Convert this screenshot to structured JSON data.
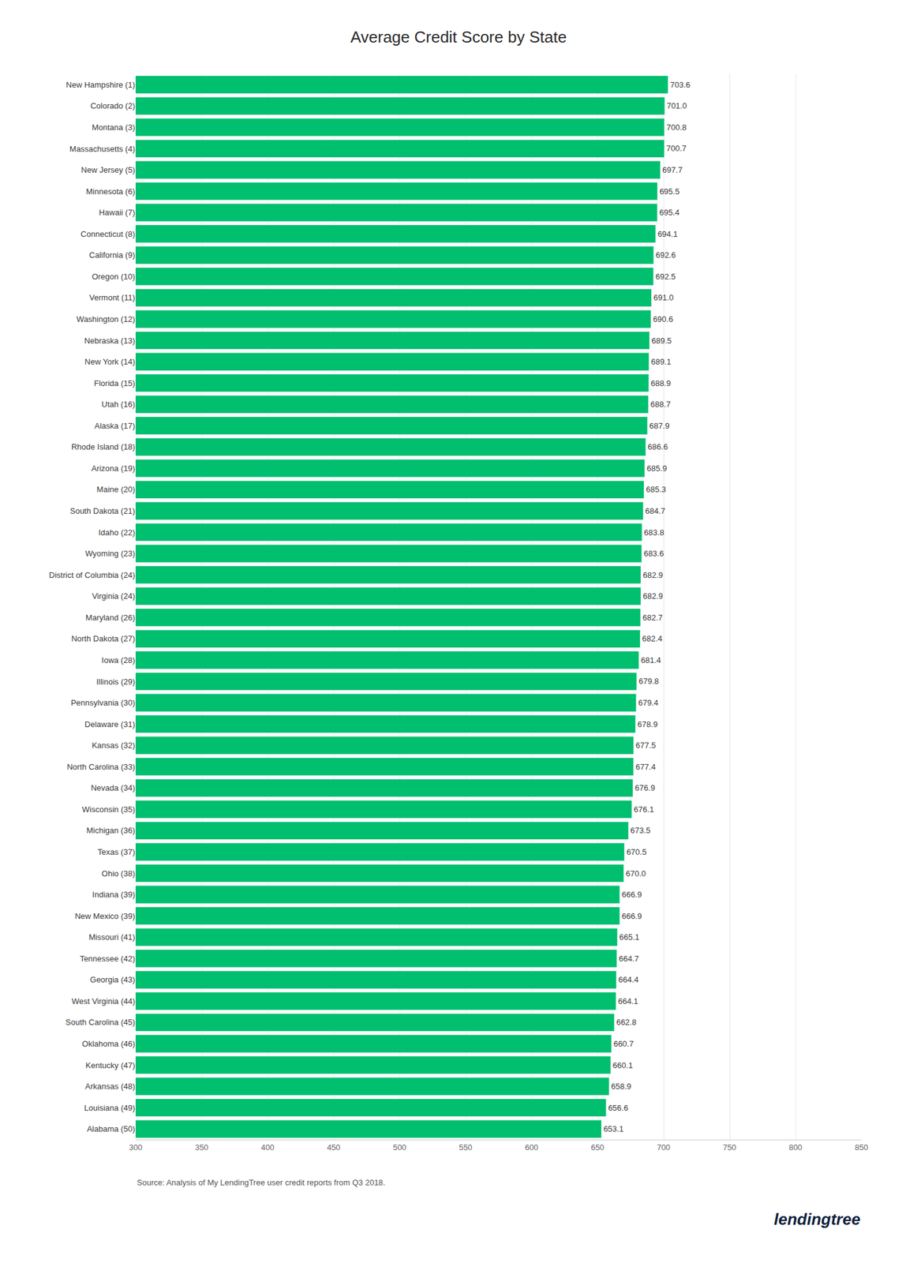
{
  "chart_data": {
    "type": "bar",
    "orientation": "horizontal",
    "title": "Average Credit Score by State",
    "categories": [
      "New Hampshire (1)",
      "Colorado (2)",
      "Montana (3)",
      "Massachusetts (4)",
      "New Jersey (5)",
      "Minnesota (6)",
      "Hawaii (7)",
      "Connecticut (8)",
      "California (9)",
      "Oregon (10)",
      "Vermont (11)",
      "Washington (12)",
      "Nebraska (13)",
      "New York (14)",
      "Florida (15)",
      "Utah (16)",
      "Alaska (17)",
      "Rhode Island (18)",
      "Arizona (19)",
      "Maine (20)",
      "South Dakota (21)",
      "Idaho (22)",
      "Wyoming (23)",
      "District of Columbia (24)",
      "Virginia (24)",
      "Maryland (26)",
      "North Dakota (27)",
      "Iowa (28)",
      "Illinois (29)",
      "Pennsylvania (30)",
      "Delaware (31)",
      "Kansas (32)",
      "North Carolina (33)",
      "Nevada (34)",
      "Wisconsin (35)",
      "Michigan (36)",
      "Texas (37)",
      "Ohio (38)",
      "Indiana (39)",
      "New Mexico (39)",
      "Missouri (41)",
      "Tennessee (42)",
      "Georgia (43)",
      "West Virginia (44)",
      "South Carolina (45)",
      "Oklahoma (46)",
      "Kentucky (47)",
      "Arkansas (48)",
      "Louisiana (49)",
      "Alabama (50)"
    ],
    "values": [
      703.6,
      701.0,
      700.8,
      700.7,
      697.7,
      695.5,
      695.4,
      694.1,
      692.6,
      692.5,
      691.0,
      690.6,
      689.5,
      689.1,
      688.9,
      688.7,
      687.9,
      686.6,
      685.9,
      685.3,
      684.7,
      683.8,
      683.6,
      682.9,
      682.9,
      682.7,
      682.4,
      681.4,
      679.8,
      679.4,
      678.9,
      677.5,
      677.4,
      676.9,
      676.1,
      673.5,
      670.5,
      670.0,
      666.9,
      666.9,
      665.1,
      664.7,
      664.4,
      664.1,
      662.8,
      660.7,
      660.1,
      658.9,
      656.6,
      653.1
    ],
    "color": "#00BF6F",
    "xlim": [
      300,
      850
    ],
    "xticks": [
      300,
      350,
      400,
      450,
      500,
      550,
      600,
      650,
      700,
      750,
      800,
      850
    ],
    "grid": true,
    "data_labels": true,
    "annotations": [
      "Source: Analysis of My LendingTree user credit reports from Q3 2018.",
      "lendingtree"
    ]
  }
}
